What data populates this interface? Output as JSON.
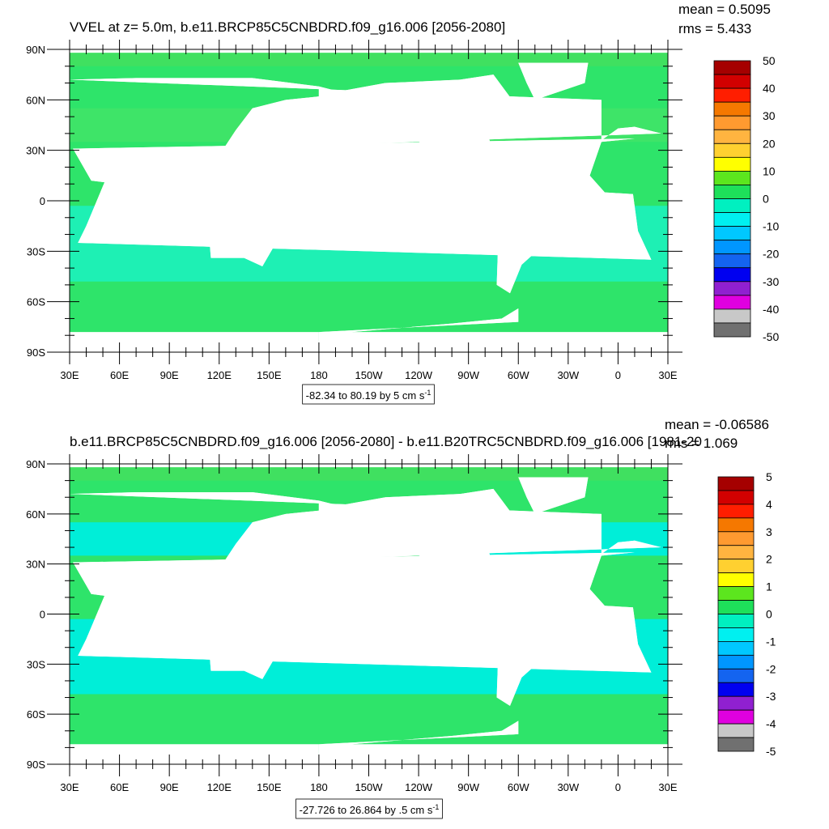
{
  "panels": [
    {
      "title": "VVEL at z=   5.0m, b.e11.BRCP85C5CNBDRD.f09_g16.006 [2056-2080]",
      "mean": "mean = 0.5095",
      "rms": "rms = 5.433",
      "lat_labels": [
        "90N",
        "60N",
        "30N",
        "0",
        "30S",
        "60S",
        "90S"
      ],
      "lon_labels": [
        "30E",
        "60E",
        "90E",
        "120E",
        "150E",
        "180",
        "150W",
        "120W",
        "90W",
        "60W",
        "30W",
        "0",
        "30E"
      ],
      "colorbar": {
        "labels": [
          "50",
          "40",
          "30",
          "20",
          "10",
          "0",
          "-10",
          "-20",
          "-30",
          "-40",
          "-50"
        ],
        "colors": [
          "#a50000",
          "#d20000",
          "#ff1e00",
          "#f57800",
          "#ff9a30",
          "#ffb440",
          "#ffd030",
          "#ffff00",
          "#5ce61e",
          "#1ee05a",
          "#00f0c0",
          "#00f0f0",
          "#00c8ff",
          "#0096ff",
          "#1464f0",
          "#0000f0",
          "#9020d0",
          "#e000e0",
          "#c8c8c8",
          "#707070"
        ]
      },
      "contour_info": {
        "text": "-82.34 to 80.19 by 5 cm s",
        "superscript": "-1"
      }
    },
    {
      "title": "b.e11.BRCP85C5CNBDRD.f09_g16.006 [2056-2080] - b.e11.B20TRC5CNBDRD.f09_g16.006 [1981-20",
      "mean": "mean = -0.06586",
      "rms": "rms = 1.069",
      "lat_labels": [
        "90N",
        "60N",
        "30N",
        "0",
        "30S",
        "60S",
        "90S"
      ],
      "lon_labels": [
        "30E",
        "60E",
        "90E",
        "120E",
        "150E",
        "180",
        "150W",
        "120W",
        "90W",
        "60W",
        "30W",
        "0",
        "30E"
      ],
      "colorbar": {
        "labels": [
          "5",
          "4",
          "3",
          "2",
          "1",
          "0",
          "-1",
          "-2",
          "-3",
          "-4",
          "-5"
        ],
        "colors": [
          "#a50000",
          "#d20000",
          "#ff1e00",
          "#f57800",
          "#ff9a30",
          "#ffb440",
          "#ffd030",
          "#ffff00",
          "#5ce61e",
          "#1ee05a",
          "#00f0c0",
          "#00f0f0",
          "#00c8ff",
          "#0096ff",
          "#1464f0",
          "#0000f0",
          "#9020d0",
          "#e000e0",
          "#c8c8c8",
          "#707070"
        ]
      },
      "contour_info": {
        "text": "-27.726 to 26.864 by .5 cm s",
        "superscript": "-1"
      }
    }
  ]
}
